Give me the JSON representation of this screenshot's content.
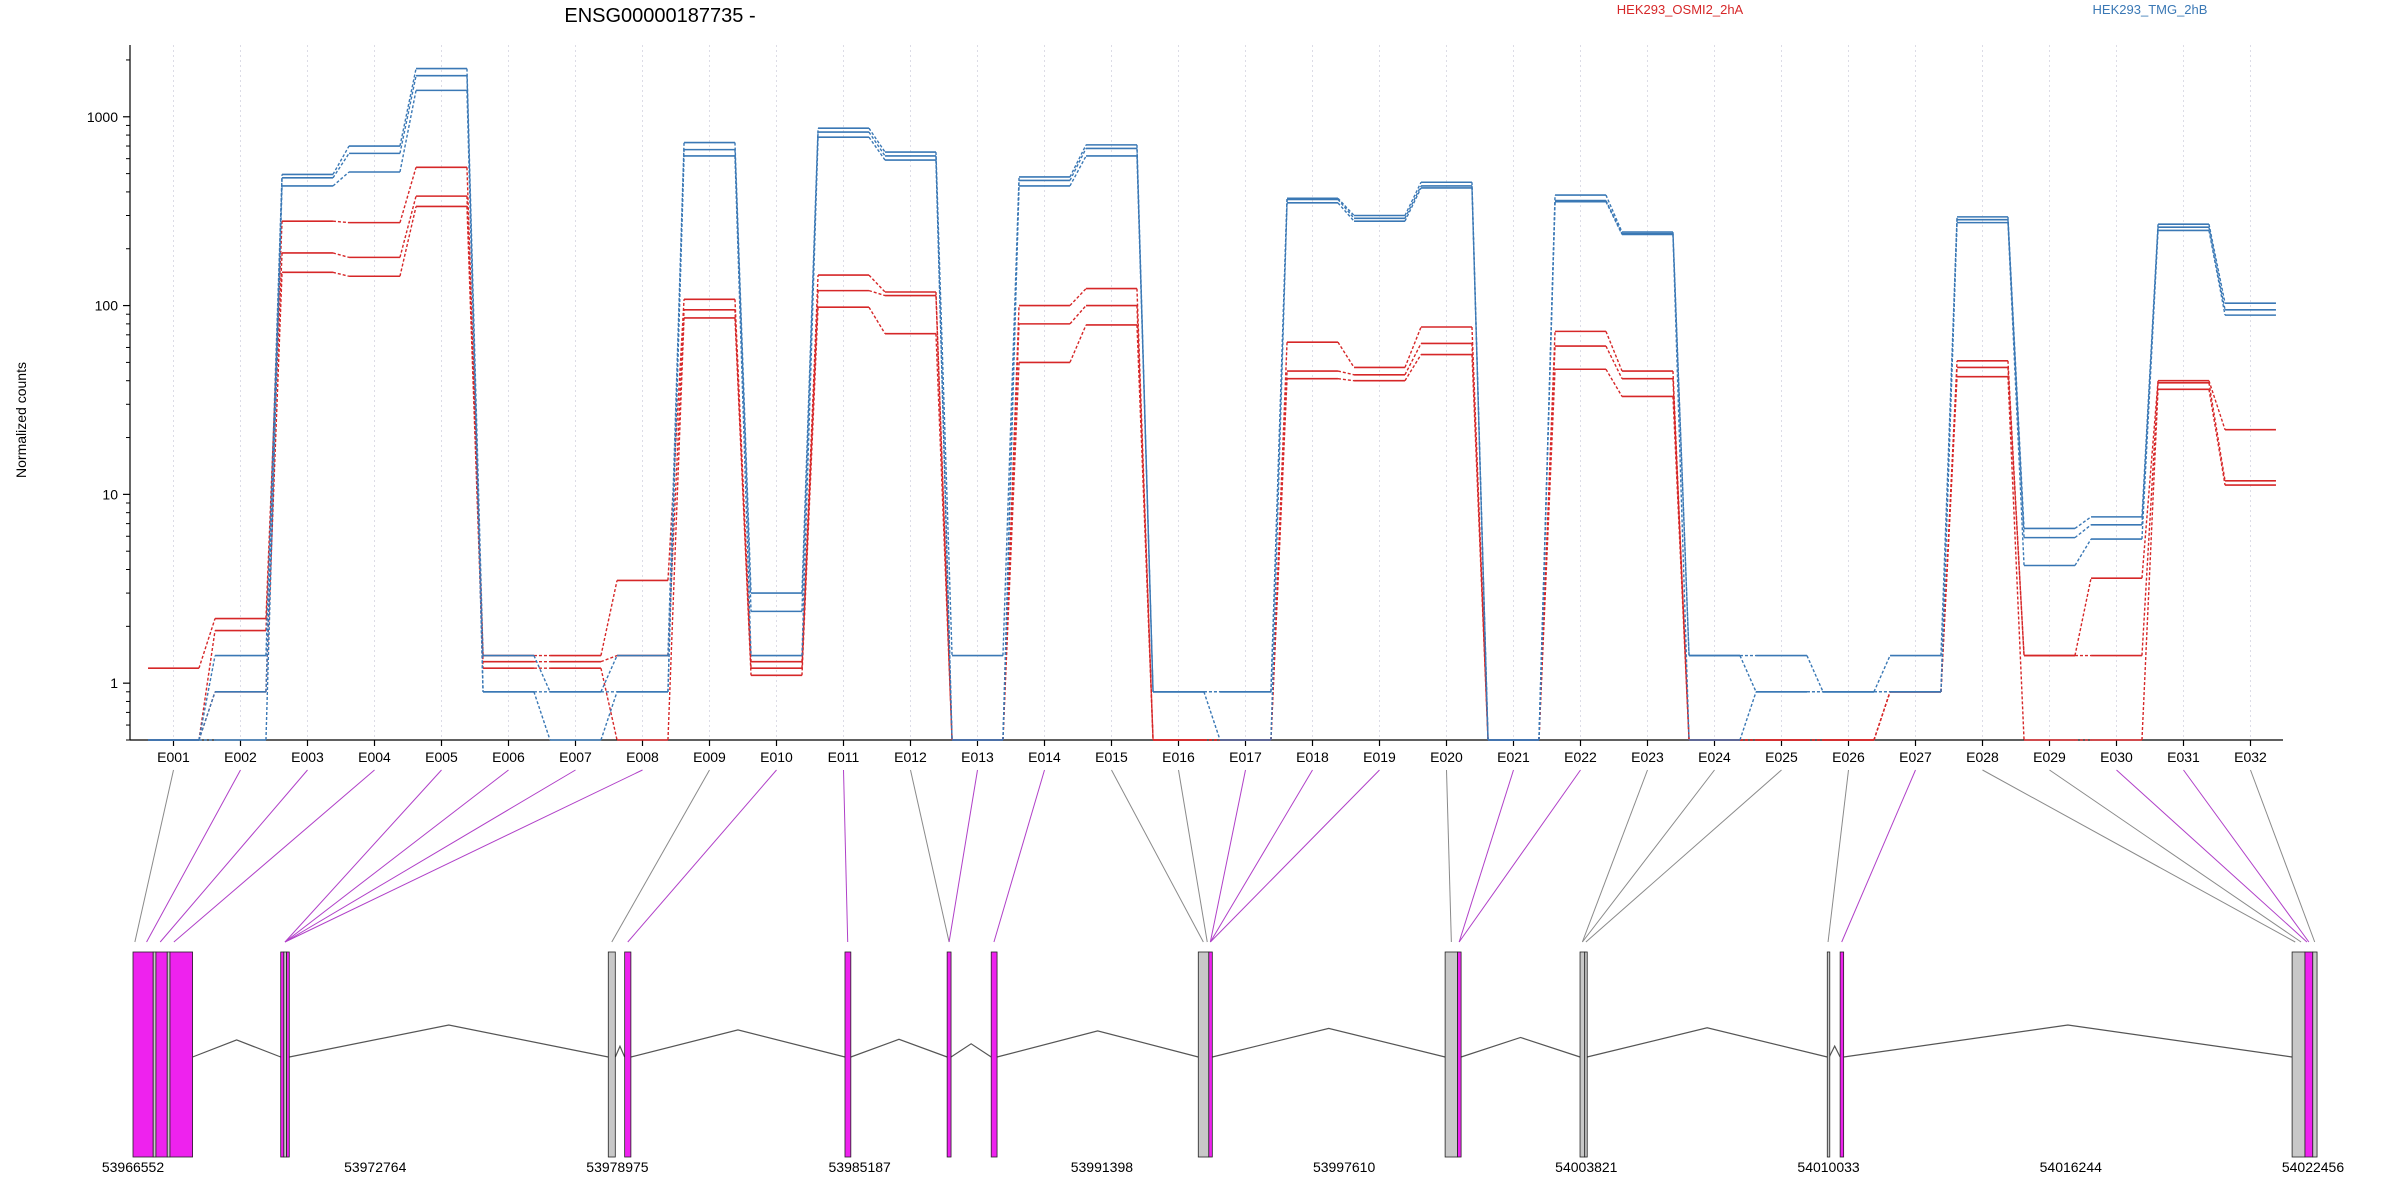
{
  "chart_data": {
    "type": "line",
    "title": "ENSG00000187735 -",
    "ylabel": "Normalized counts",
    "xlabel": "",
    "y_scale": "log",
    "ylim": [
      0.5,
      2400
    ],
    "y_ticks": [
      "1",
      "10",
      "100",
      "1000"
    ],
    "y_tick_values": [
      1,
      10,
      100,
      1000
    ],
    "categories": [
      "E001",
      "E002",
      "E003",
      "E004",
      "E005",
      "E006",
      "E007",
      "E008",
      "E009",
      "E010",
      "E011",
      "E012",
      "E013",
      "E014",
      "E015",
      "E016",
      "E017",
      "E018",
      "E019",
      "E020",
      "E021",
      "E022",
      "E023",
      "E024",
      "E025",
      "E026",
      "E027",
      "E028",
      "E029",
      "E030",
      "E031",
      "E032"
    ],
    "legend": [
      {
        "name": "HEK293_OSMI2_2hA",
        "color": "#d62728"
      },
      {
        "name": "HEK293_TMG_2hB",
        "color": "#3a78b5"
      }
    ],
    "series": [
      {
        "name": "HEK293_OSMI2_2hA",
        "color": "#d62728",
        "values": [
          1.2,
          2.2,
          280,
          275,
          540,
          1.4,
          1.4,
          3.5,
          108,
          1.3,
          145,
          118,
          0.5,
          100,
          123,
          0.5,
          0.5,
          64,
          47,
          77,
          0.5,
          73,
          45,
          0.5,
          0.5,
          0.5,
          0.9,
          51,
          1.4,
          3.6,
          40,
          22
        ]
      },
      {
        "name": "HEK293_OSMI2_2hA",
        "color": "#d62728",
        "values": [
          0.5,
          1.9,
          190,
          180,
          380,
          1.3,
          1.3,
          1.4,
          95,
          1.2,
          120,
          113,
          0.5,
          80,
          100,
          0.5,
          0.5,
          45,
          43,
          63,
          0.5,
          61,
          41,
          0.5,
          0.5,
          0.5,
          0.9,
          47,
          1.4,
          1.4,
          39,
          11.8
        ]
      },
      {
        "name": "HEK293_OSMI2_2hA",
        "color": "#d62728",
        "values": [
          0.5,
          0.9,
          150,
          143,
          335,
          1.2,
          1.2,
          0.5,
          86,
          1.1,
          98,
          71,
          0.5,
          50,
          79,
          0.5,
          0.5,
          41,
          40,
          55,
          0.5,
          46,
          33,
          0.5,
          0.5,
          0.5,
          0.9,
          42,
          0.5,
          0.5,
          36,
          11.2
        ]
      },
      {
        "name": "HEK293_TMG_2hB",
        "color": "#3a78b5",
        "values": [
          0.5,
          1.4,
          495,
          700,
          1800,
          1.4,
          0.9,
          1.4,
          730,
          3.0,
          870,
          650,
          1.4,
          480,
          710,
          0.9,
          0.9,
          370,
          300,
          450,
          0.5,
          385,
          245,
          1.4,
          1.4,
          0.9,
          1.4,
          295,
          6.6,
          7.6,
          270,
          103
        ]
      },
      {
        "name": "HEK293_TMG_2hB",
        "color": "#3a78b5",
        "values": [
          0.5,
          0.9,
          475,
          640,
          1650,
          0.9,
          0.9,
          0.9,
          670,
          2.4,
          830,
          620,
          0.5,
          460,
          680,
          0.9,
          0.9,
          365,
          290,
          430,
          0.5,
          360,
          240,
          1.4,
          0.9,
          0.9,
          0.9,
          285,
          5.9,
          6.9,
          260,
          95
        ]
      },
      {
        "name": "HEK293_TMG_2hB",
        "color": "#3a78b5",
        "values": [
          0.5,
          0.5,
          430,
          510,
          1380,
          0.9,
          0.5,
          0.9,
          620,
          1.4,
          780,
          590,
          0.5,
          430,
          620,
          0.9,
          0.5,
          350,
          280,
          420,
          0.5,
          355,
          238,
          0.5,
          0.9,
          0.9,
          0.9,
          275,
          4.2,
          5.8,
          250,
          89
        ]
      }
    ],
    "gene_model": {
      "coordinate_labels": [
        "53966552",
        "53972764",
        "53978975",
        "53985187",
        "53991398",
        "53997610",
        "54003821",
        "54010033",
        "54016244",
        "54022456"
      ],
      "genomic_range": [
        53966552,
        54022456
      ],
      "exon_highlight_color": "#ee22ee",
      "exon_plain_color": "#c8c8c8",
      "exons": [
        {
          "start": 53966552,
          "end": 53967070,
          "highlighted": true
        },
        {
          "start": 53967070,
          "end": 53967140,
          "highlighted": false
        },
        {
          "start": 53967140,
          "end": 53967430,
          "highlighted": true
        },
        {
          "start": 53967430,
          "end": 53967500,
          "highlighted": false
        },
        {
          "start": 53967500,
          "end": 53968080,
          "highlighted": true
        },
        {
          "start": 53970340,
          "end": 53970420,
          "highlighted": true
        },
        {
          "start": 53970420,
          "end": 53970490,
          "highlighted": false
        },
        {
          "start": 53970490,
          "end": 53970560,
          "highlighted": true
        },
        {
          "start": 53978740,
          "end": 53978920,
          "highlighted": false
        },
        {
          "start": 53979160,
          "end": 53979320,
          "highlighted": true
        },
        {
          "start": 53984810,
          "end": 53984960,
          "highlighted": true
        },
        {
          "start": 53987430,
          "end": 53987530,
          "highlighted": true
        },
        {
          "start": 53988560,
          "end": 53988710,
          "highlighted": true
        },
        {
          "start": 53993870,
          "end": 53994140,
          "highlighted": false
        },
        {
          "start": 53994140,
          "end": 53994230,
          "highlighted": true
        },
        {
          "start": 54000200,
          "end": 54000520,
          "highlighted": false
        },
        {
          "start": 54000520,
          "end": 54000610,
          "highlighted": true
        },
        {
          "start": 54003660,
          "end": 54003780,
          "highlighted": false
        },
        {
          "start": 54003780,
          "end": 54003840,
          "highlighted": false
        },
        {
          "start": 54010000,
          "end": 54010050,
          "highlighted": false
        },
        {
          "start": 54010330,
          "end": 54010420,
          "highlighted": true
        },
        {
          "start": 54021920,
          "end": 54022250,
          "highlighted": false
        },
        {
          "start": 54022250,
          "end": 54022450,
          "highlighted": true
        },
        {
          "start": 54022450,
          "end": 54022560,
          "highlighted": false
        }
      ],
      "exon_bin_map": [
        {
          "bin": "E001",
          "pos": 53966600,
          "highlighted": false
        },
        {
          "bin": "E002",
          "pos": 53966900,
          "highlighted": true
        },
        {
          "bin": "E003",
          "pos": 53967250,
          "highlighted": true
        },
        {
          "bin": "E004",
          "pos": 53967600,
          "highlighted": true
        },
        {
          "bin": "E005",
          "pos": 53970450,
          "highlighted": true
        },
        {
          "bin": "E006",
          "pos": 53970450,
          "highlighted": true
        },
        {
          "bin": "E007",
          "pos": 53970450,
          "highlighted": true
        },
        {
          "bin": "E008",
          "pos": 53970450,
          "highlighted": true
        },
        {
          "bin": "E009",
          "pos": 53978830,
          "highlighted": false
        },
        {
          "bin": "E010",
          "pos": 53979240,
          "highlighted": true
        },
        {
          "bin": "E011",
          "pos": 53984880,
          "highlighted": true
        },
        {
          "bin": "E012",
          "pos": 53987480,
          "highlighted": false
        },
        {
          "bin": "E013",
          "pos": 53987480,
          "highlighted": true
        },
        {
          "bin": "E014",
          "pos": 53988630,
          "highlighted": true
        },
        {
          "bin": "E015",
          "pos": 53994000,
          "highlighted": false
        },
        {
          "bin": "E016",
          "pos": 53994100,
          "highlighted": false
        },
        {
          "bin": "E017",
          "pos": 53994180,
          "highlighted": true
        },
        {
          "bin": "E018",
          "pos": 53994180,
          "highlighted": true
        },
        {
          "bin": "E019",
          "pos": 53994180,
          "highlighted": true
        },
        {
          "bin": "E020",
          "pos": 54000360,
          "highlighted": false
        },
        {
          "bin": "E021",
          "pos": 54000560,
          "highlighted": true
        },
        {
          "bin": "E022",
          "pos": 54000560,
          "highlighted": true
        },
        {
          "bin": "E023",
          "pos": 54003720,
          "highlighted": false
        },
        {
          "bin": "E024",
          "pos": 54003720,
          "highlighted": false
        },
        {
          "bin": "E025",
          "pos": 54003810,
          "highlighted": false
        },
        {
          "bin": "E026",
          "pos": 54010020,
          "highlighted": false
        },
        {
          "bin": "E027",
          "pos": 54010370,
          "highlighted": true
        },
        {
          "bin": "E028",
          "pos": 54022000,
          "highlighted": false
        },
        {
          "bin": "E029",
          "pos": 54022150,
          "highlighted": false
        },
        {
          "bin": "E030",
          "pos": 54022300,
          "highlighted": true
        },
        {
          "bin": "E031",
          "pos": 54022350,
          "highlighted": true
        },
        {
          "bin": "E032",
          "pos": 54022500,
          "highlighted": false
        }
      ]
    }
  }
}
